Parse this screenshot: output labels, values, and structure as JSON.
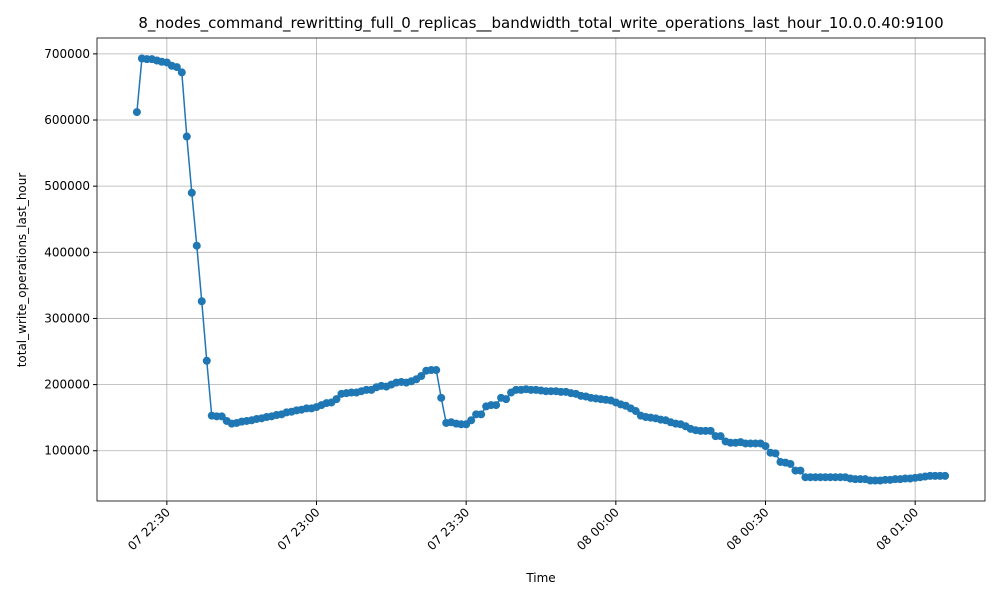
{
  "chart_data": {
    "type": "line",
    "title": "8_nodes_command_rewritting_full_0_replicas__bandwidth_total_write_operations_last_hour_10.0.0.40:9100",
    "xlabel": "Time",
    "ylabel": "total_write_operations_last_hour",
    "x": [
      "07 22:24",
      "07 22:25",
      "07 22:26",
      "07 22:27",
      "07 22:28",
      "07 22:29",
      "07 22:30",
      "07 22:31",
      "07 22:32",
      "07 22:33",
      "07 22:34",
      "07 22:35",
      "07 22:36",
      "07 22:37",
      "07 22:38",
      "07 22:39",
      "07 22:40",
      "07 22:41",
      "07 22:42",
      "07 22:43",
      "07 22:44",
      "07 22:45",
      "07 22:46",
      "07 22:47",
      "07 22:48",
      "07 22:49",
      "07 22:50",
      "07 22:51",
      "07 22:52",
      "07 22:53",
      "07 22:54",
      "07 22:55",
      "07 22:56",
      "07 22:57",
      "07 22:58",
      "07 22:59",
      "07 23:00",
      "07 23:01",
      "07 23:02",
      "07 23:03",
      "07 23:04",
      "07 23:05",
      "07 23:06",
      "07 23:07",
      "07 23:08",
      "07 23:09",
      "07 23:10",
      "07 23:11",
      "07 23:12",
      "07 23:13",
      "07 23:14",
      "07 23:15",
      "07 23:16",
      "07 23:17",
      "07 23:18",
      "07 23:19",
      "07 23:20",
      "07 23:21",
      "07 23:22",
      "07 23:23",
      "07 23:24",
      "07 23:25",
      "07 23:26",
      "07 23:27",
      "07 23:28",
      "07 23:29",
      "07 23:30",
      "07 23:31",
      "07 23:32",
      "07 23:33",
      "07 23:34",
      "07 23:35",
      "07 23:36",
      "07 23:37",
      "07 23:38",
      "07 23:39",
      "07 23:40",
      "07 23:41",
      "07 23:42",
      "07 23:43",
      "07 23:44",
      "07 23:45",
      "07 23:46",
      "07 23:47",
      "07 23:48",
      "07 23:49",
      "07 23:50",
      "07 23:51",
      "07 23:52",
      "07 23:53",
      "07 23:54",
      "07 23:55",
      "07 23:56",
      "07 23:57",
      "07 23:58",
      "07 23:59",
      "08 00:00",
      "08 00:01",
      "08 00:02",
      "08 00:03",
      "08 00:04",
      "08 00:05",
      "08 00:06",
      "08 00:07",
      "08 00:08",
      "08 00:09",
      "08 00:10",
      "08 00:11",
      "08 00:12",
      "08 00:13",
      "08 00:14",
      "08 00:15",
      "08 00:16",
      "08 00:17",
      "08 00:18",
      "08 00:19",
      "08 00:20",
      "08 00:21",
      "08 00:22",
      "08 00:23",
      "08 00:24",
      "08 00:25",
      "08 00:26",
      "08 00:27",
      "08 00:28",
      "08 00:29",
      "08 00:30",
      "08 00:31",
      "08 00:32",
      "08 00:33",
      "08 00:34",
      "08 00:35",
      "08 00:36",
      "08 00:37",
      "08 00:38",
      "08 00:39",
      "08 00:40",
      "08 00:41",
      "08 00:42",
      "08 00:43",
      "08 00:44",
      "08 00:45",
      "08 00:46",
      "08 00:47",
      "08 00:48",
      "08 00:49",
      "08 00:50",
      "08 00:51",
      "08 00:52",
      "08 00:53",
      "08 00:54",
      "08 00:55",
      "08 00:56",
      "08 00:57",
      "08 00:58",
      "08 00:59",
      "08 01:00",
      "08 01:01",
      "08 01:02",
      "08 01:03",
      "08 01:04",
      "08 01:05",
      "08 01:06"
    ],
    "series": [
      {
        "name": "total_write_operations_last_hour",
        "color": "#1f77b4",
        "values": [
          612000,
          693000,
          692000,
          692000,
          690000,
          688000,
          687000,
          682000,
          680000,
          672000,
          575000,
          490000,
          410000,
          326000,
          236000,
          153000,
          152000,
          152000,
          145000,
          141000,
          142000,
          144000,
          145000,
          146000,
          148000,
          149000,
          151000,
          152000,
          154000,
          155000,
          158000,
          159000,
          161000,
          162000,
          164000,
          164000,
          166000,
          169000,
          172000,
          173000,
          178000,
          186000,
          187000,
          188000,
          188000,
          190000,
          192000,
          192000,
          196000,
          198000,
          197000,
          200000,
          203000,
          204000,
          203000,
          205000,
          208000,
          213000,
          221000,
          222000,
          222000,
          180000,
          142000,
          143000,
          141000,
          140000,
          140000,
          146000,
          155000,
          155000,
          167000,
          169000,
          169000,
          180000,
          178000,
          188000,
          192000,
          192000,
          193000,
          192000,
          192000,
          191000,
          190000,
          190000,
          190000,
          189000,
          189000,
          187000,
          186000,
          183000,
          182000,
          180000,
          179000,
          178000,
          177000,
          176000,
          173000,
          170000,
          168000,
          164000,
          160000,
          153000,
          151000,
          150000,
          149000,
          147000,
          146000,
          143000,
          141000,
          140000,
          137000,
          133000,
          131000,
          130000,
          130000,
          130000,
          122000,
          122000,
          114000,
          112000,
          112000,
          113000,
          111000,
          111000,
          111000,
          111000,
          107000,
          97000,
          96000,
          83000,
          82000,
          80000,
          70000,
          70000,
          60000,
          60000,
          60000,
          60000,
          60000,
          60000,
          60000,
          60000,
          60000,
          58000,
          57000,
          57000,
          57000,
          55000,
          55000,
          55000,
          56000,
          56000,
          57000,
          57000,
          58000,
          58000,
          59000,
          60000,
          61000,
          62000,
          62000,
          62000,
          62000
        ]
      }
    ],
    "xlim": [
      "07 22:16",
      "08 01:14"
    ],
    "xticks": [
      "07 22:30",
      "07 23:00",
      "07 23:30",
      "08 00:00",
      "08 00:30",
      "08 01:00"
    ],
    "ylim": [
      24000,
      724000
    ],
    "yticks": [
      100000,
      200000,
      300000,
      400000,
      500000,
      600000,
      700000
    ],
    "grid": true
  }
}
